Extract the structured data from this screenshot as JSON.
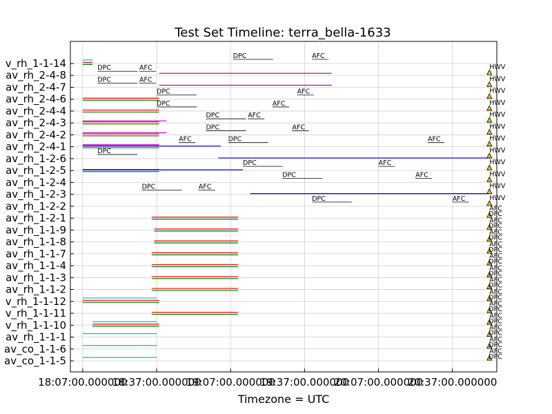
{
  "chart_data": {
    "type": "timeline",
    "title": "Test Set Timeline: terra_bella-1633",
    "xlabel": "Timezone = UTC",
    "xlim": [
      1082,
      1255
    ],
    "x_unit": "minutes",
    "x_ticks": [
      {
        "value": 1087,
        "label": "18:07:00.000000"
      },
      {
        "value": 1117,
        "label": "18:37:00.000000"
      },
      {
        "value": 1147,
        "label": "19:07:00.000000"
      },
      {
        "value": 1177,
        "label": "19:37:00.000000"
      },
      {
        "value": 1207,
        "label": "20:07:00.000000"
      },
      {
        "value": 1237,
        "label": "20:37:00.000000"
      }
    ],
    "rows": [
      "av_co_1-1-5",
      "av_co_1-1-6",
      "av_rh_1-1-1",
      "v_rh_1-1-10",
      "v_rh_1-1-11",
      "v_rh_1-1-12",
      "av_rh_1-1-2",
      "av_rh_1-1-3",
      "av_rh_1-1-4",
      "av_rh_1-1-7",
      "av_rh_1-1-8",
      "av_rh_1-1-9",
      "av_rh_1-2-1",
      "av_rh_1-2-2",
      "av_rh_1-2-3",
      "av_rh_1-2-4",
      "av_rh_1-2-5",
      "av_rh_1-2-6",
      "av_rh_2-4-1",
      "av_rh_2-4-2",
      "av_rh_2-4-3",
      "av_rh_2-4-4",
      "av_rh_2-4-6",
      "av_rh_2-4-7",
      "av_rh_2-4-8",
      "v_rh_1-1-14"
    ],
    "series": [
      {
        "name": "",
        "color": "#00bfbf",
        "segments": [
          [
            0,
            1087,
            1117
          ],
          [
            1,
            1087,
            1117
          ],
          [
            2,
            1087,
            1117
          ],
          [
            3,
            1091,
            1117
          ],
          [
            5,
            1087,
            1117
          ],
          [
            25,
            1087,
            1091
          ]
        ]
      },
      {
        "name": "",
        "color": "#ff0000",
        "segments": [
          [
            3,
            1091,
            1118
          ],
          [
            4,
            1115,
            1150
          ],
          [
            5,
            1087,
            1118
          ],
          [
            6,
            1115,
            1150
          ],
          [
            7,
            1115,
            1150
          ],
          [
            8,
            1115,
            1150
          ],
          [
            9,
            1115,
            1150
          ],
          [
            10,
            1116,
            1150
          ],
          [
            11,
            1116,
            1150
          ],
          [
            12,
            1115,
            1150
          ],
          [
            16,
            1087,
            1118
          ],
          [
            18,
            1087,
            1118
          ],
          [
            19,
            1087,
            1118
          ],
          [
            20,
            1087,
            1118
          ],
          [
            21,
            1087,
            1118
          ],
          [
            22,
            1087,
            1118
          ],
          [
            25,
            1087,
            1091
          ]
        ]
      },
      {
        "name": "",
        "color": "#008000",
        "segments": [
          [
            3,
            1091,
            1118
          ],
          [
            4,
            1115,
            1150
          ],
          [
            5,
            1087,
            1118
          ],
          [
            6,
            1115,
            1150
          ],
          [
            7,
            1115,
            1150
          ],
          [
            8,
            1115,
            1150
          ],
          [
            9,
            1115,
            1150
          ],
          [
            10,
            1116,
            1150
          ],
          [
            11,
            1116,
            1150
          ],
          [
            12,
            1115,
            1150
          ],
          [
            16,
            1087,
            1118
          ],
          [
            18,
            1087,
            1118
          ],
          [
            19,
            1087,
            1118
          ],
          [
            20,
            1087,
            1118
          ],
          [
            21,
            1087,
            1118
          ],
          [
            22,
            1087,
            1118
          ],
          [
            25,
            1087,
            1091
          ]
        ]
      },
      {
        "name": "",
        "color": "#0000ff",
        "segments": [
          [
            14,
            1155,
            1252
          ],
          [
            16,
            1087,
            1152
          ],
          [
            17,
            1142,
            1252
          ],
          [
            18,
            1087,
            1143
          ]
        ]
      },
      {
        "name": "",
        "color": "#bf00bf",
        "segments": [
          [
            18,
            1087,
            1118
          ],
          [
            19,
            1087,
            1121
          ],
          [
            20,
            1087,
            1121
          ],
          [
            23,
            1118,
            1188
          ],
          [
            24,
            1118,
            1188
          ]
        ]
      }
    ],
    "annotations": [
      {
        "label": "DPC",
        "row": 13,
        "x": 1180
      },
      {
        "label": "AFC",
        "row": 13,
        "x": 1237
      },
      {
        "label": "DPC",
        "row": 14,
        "x": 1111
      },
      {
        "label": "AFC",
        "row": 14,
        "x": 1134
      },
      {
        "label": "DPC",
        "row": 15,
        "x": 1168
      },
      {
        "label": "AFC",
        "row": 15,
        "x": 1222
      },
      {
        "label": "DPC",
        "row": 16,
        "x": 1152
      },
      {
        "label": "AFC",
        "row": 16,
        "x": 1207
      },
      {
        "label": "DPC",
        "row": 17,
        "x": 1093
      },
      {
        "label": "DPC",
        "row": 18,
        "x": 1146
      },
      {
        "label": "AFC",
        "row": 18,
        "x": 1126
      },
      {
        "label": "AFC",
        "row": 18,
        "x": 1227
      },
      {
        "label": "DPC",
        "row": 19,
        "x": 1137
      },
      {
        "label": "AFC",
        "row": 19,
        "x": 1172
      },
      {
        "label": "DPC",
        "row": 20,
        "x": 1137
      },
      {
        "label": "AFC",
        "row": 20,
        "x": 1154
      },
      {
        "label": "DPC",
        "row": 21,
        "x": 1117
      },
      {
        "label": "AFC",
        "row": 21,
        "x": 1164
      },
      {
        "label": "DPC",
        "row": 22,
        "x": 1117
      },
      {
        "label": "AFC",
        "row": 22,
        "x": 1174
      },
      {
        "label": "DPC",
        "row": 23,
        "x": 1093
      },
      {
        "label": "AFC",
        "row": 23,
        "x": 1110
      },
      {
        "label": "DPC",
        "row": 24,
        "x": 1093
      },
      {
        "label": "AFC",
        "row": 24,
        "x": 1110
      },
      {
        "label": "DPC",
        "row": 25,
        "x": 1148
      },
      {
        "label": "AFC",
        "row": 25,
        "x": 1180
      }
    ],
    "markers": [
      {
        "row": 14,
        "label": "HWV"
      },
      {
        "row": 15,
        "label": "HWV"
      },
      {
        "row": 16,
        "label": "HWV"
      },
      {
        "row": 17,
        "label": "HWV"
      },
      {
        "row": 18,
        "label": "HWV"
      },
      {
        "row": 19,
        "label": "HWV"
      },
      {
        "row": 20,
        "label": "HWV"
      },
      {
        "row": 21,
        "label": "HWV"
      },
      {
        "row": 22,
        "label": "HWV"
      },
      {
        "row": 23,
        "label": "HWV"
      },
      {
        "row": 24,
        "label": "HWV"
      },
      {
        "row": 0,
        "label": "AFC DPC"
      },
      {
        "row": 1,
        "label": "AFC DPC"
      },
      {
        "row": 2,
        "label": "AFC DPC"
      },
      {
        "row": 3,
        "label": "AFC DPC"
      },
      {
        "row": 4,
        "label": "AFC DPC"
      },
      {
        "row": 5,
        "label": "AFC DPC"
      },
      {
        "row": 6,
        "label": "AFC DPC"
      },
      {
        "row": 7,
        "label": "AFC DPC"
      },
      {
        "row": 8,
        "label": "AFC DPC"
      },
      {
        "row": 9,
        "label": "AFC DPC"
      },
      {
        "row": 10,
        "label": "AFC DPC"
      },
      {
        "row": 11,
        "label": "AFC DPC"
      },
      {
        "row": 12,
        "label": "AFC DPC"
      },
      {
        "row": 13,
        "label": "HWV"
      }
    ],
    "marker_x": 1252,
    "grid": true
  }
}
